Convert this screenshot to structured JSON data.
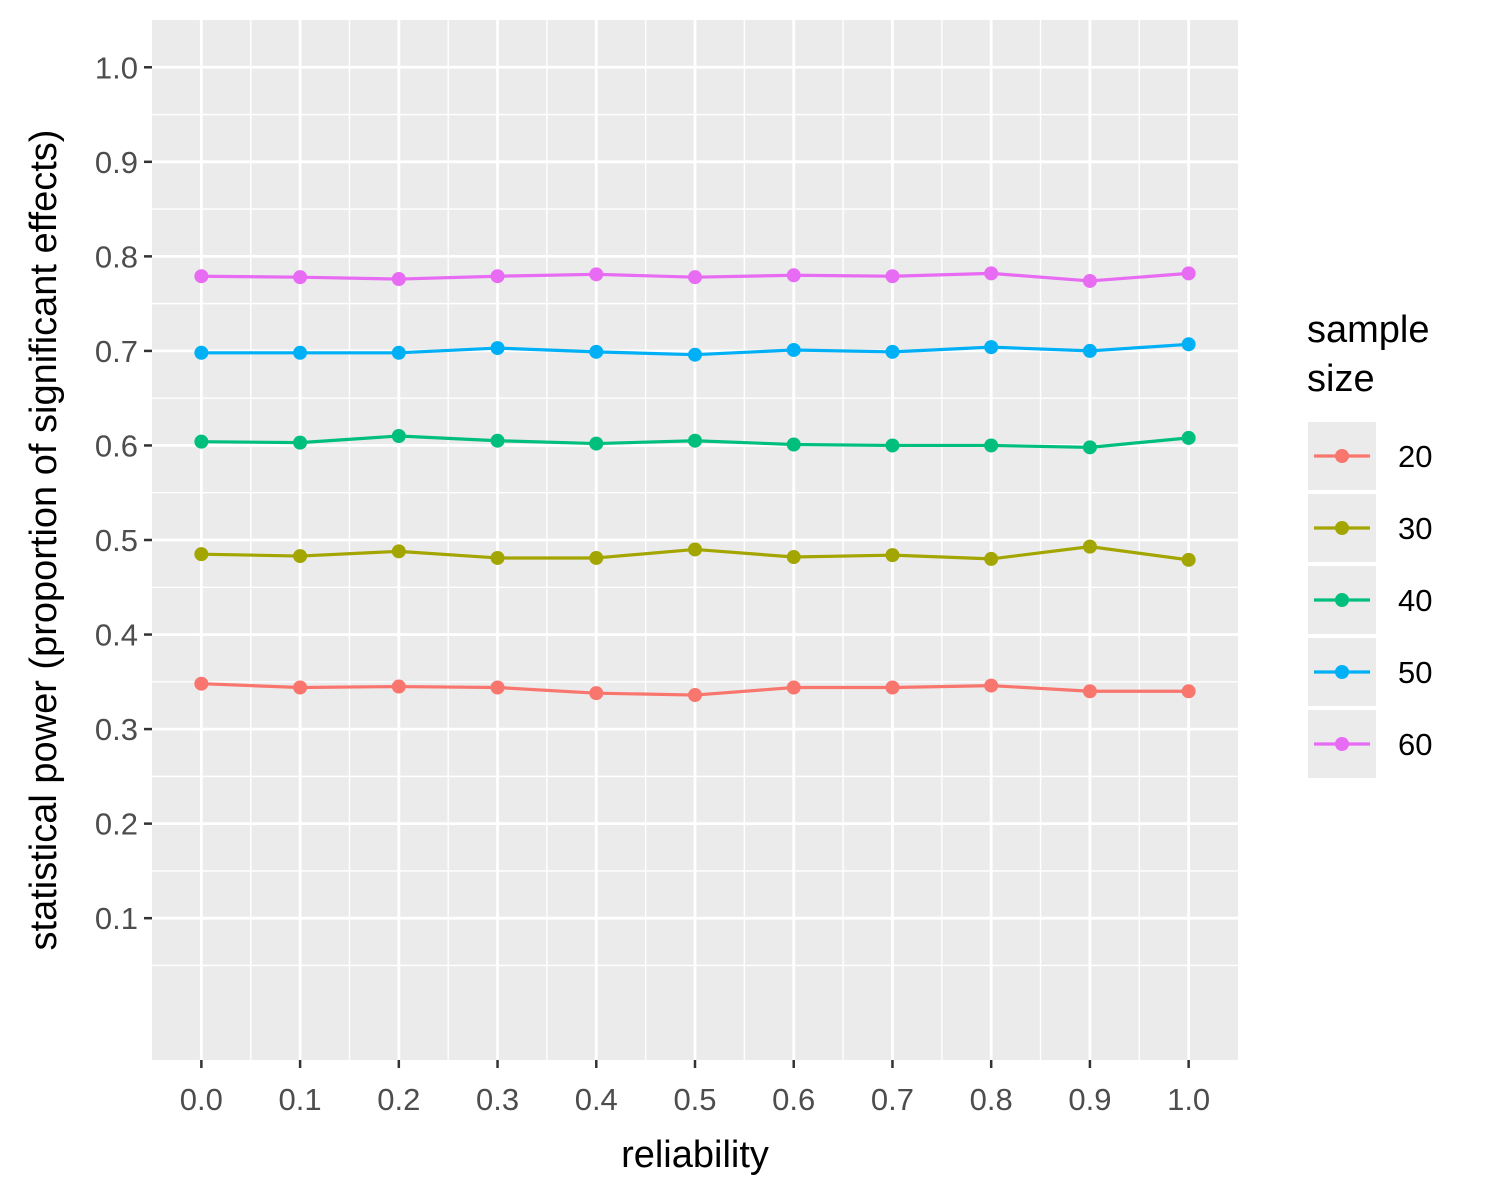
{
  "chart_data": {
    "type": "line",
    "title": "",
    "xlabel": "reliability",
    "ylabel": "statistical power (proportion of significant effects)",
    "x": [
      0.0,
      0.1,
      0.2,
      0.3,
      0.4,
      0.5,
      0.6,
      0.7,
      0.8,
      0.9,
      1.0
    ],
    "x_tick_labels": [
      "0.0",
      "0.1",
      "0.2",
      "0.3",
      "0.4",
      "0.5",
      "0.6",
      "0.7",
      "0.8",
      "0.9",
      "1.0"
    ],
    "y_ticks": [
      0.1,
      0.2,
      0.3,
      0.4,
      0.5,
      0.6,
      0.7,
      0.8,
      0.9,
      1.0
    ],
    "y_tick_labels": [
      "0.1",
      "0.2",
      "0.3",
      "0.4",
      "0.5",
      "0.6",
      "0.7",
      "0.8",
      "0.9",
      "1.0"
    ],
    "xlim": [
      -0.05,
      1.05
    ],
    "ylim": [
      -0.05,
      1.05
    ],
    "grid": true,
    "legend": {
      "title_lines": [
        "sample",
        "size"
      ],
      "placement": "right"
    },
    "series": [
      {
        "name": "20",
        "color": "#F8766D",
        "values": [
          0.348,
          0.344,
          0.345,
          0.344,
          0.338,
          0.336,
          0.344,
          0.344,
          0.346,
          0.34,
          0.34
        ]
      },
      {
        "name": "30",
        "color": "#A3A500",
        "values": [
          0.485,
          0.483,
          0.488,
          0.481,
          0.481,
          0.49,
          0.482,
          0.484,
          0.48,
          0.493,
          0.479
        ]
      },
      {
        "name": "40",
        "color": "#00BF7D",
        "values": [
          0.604,
          0.603,
          0.61,
          0.605,
          0.602,
          0.605,
          0.601,
          0.6,
          0.6,
          0.598,
          0.608
        ]
      },
      {
        "name": "50",
        "color": "#00B0F6",
        "values": [
          0.698,
          0.698,
          0.698,
          0.703,
          0.699,
          0.696,
          0.701,
          0.699,
          0.704,
          0.7,
          0.707
        ]
      },
      {
        "name": "60",
        "color": "#E76BF3",
        "values": [
          0.779,
          0.778,
          0.776,
          0.779,
          0.781,
          0.778,
          0.78,
          0.779,
          0.782,
          0.774,
          0.782
        ]
      }
    ]
  }
}
